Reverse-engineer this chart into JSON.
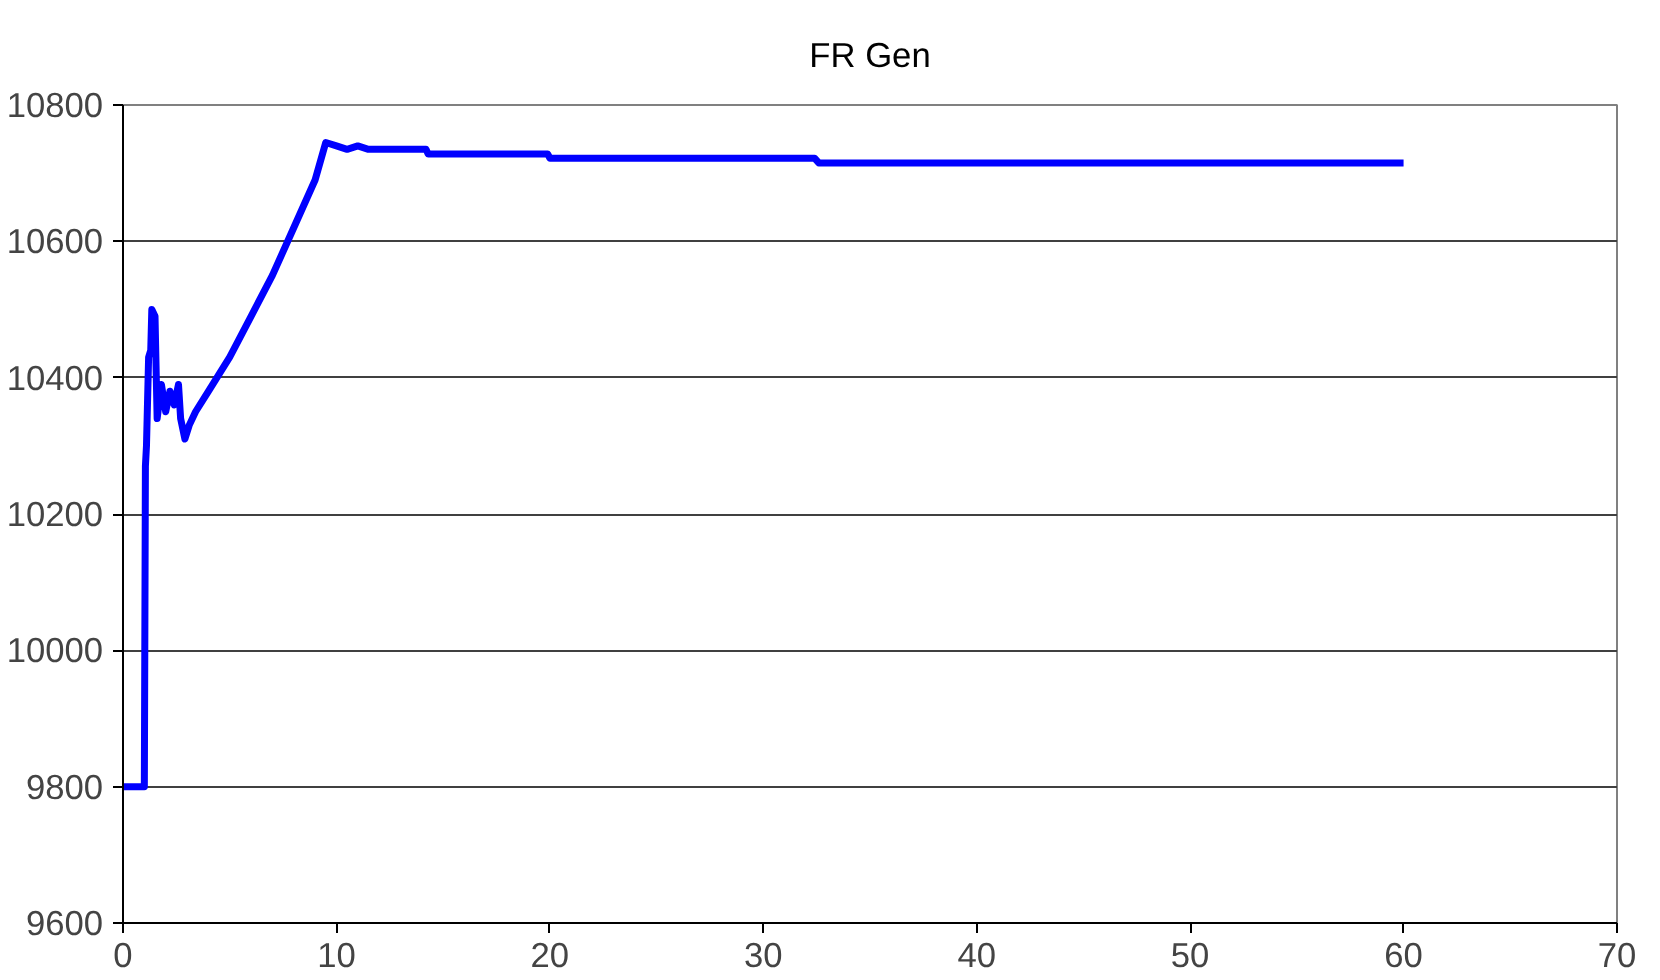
{
  "chart_data": {
    "type": "line",
    "title": "FR Gen",
    "series": [
      {
        "color": "#0000ff",
        "x": [
          0,
          1.0,
          1.05,
          1.1,
          1.2,
          1.3,
          1.35,
          1.5,
          1.6,
          1.8,
          2.0,
          2.2,
          2.4,
          2.6,
          2.7,
          2.9,
          3.1,
          3.4,
          4,
          5,
          6,
          7,
          8,
          9,
          9.5,
          10,
          10.5,
          11,
          11.5,
          14.2,
          14.3,
          19.9,
          20,
          32.4,
          32.6,
          60
        ],
        "values": [
          9800,
          9800,
          10270,
          10300,
          10430,
          10440,
          10500,
          10490,
          10340,
          10390,
          10350,
          10380,
          10360,
          10390,
          10340,
          10310,
          10330,
          10350,
          10380,
          10430,
          10490,
          10550,
          10620,
          10690,
          10745,
          10740,
          10735,
          10740,
          10735,
          10735,
          10728,
          10728,
          10722,
          10722,
          10715,
          10715
        ]
      }
    ],
    "xlim": [
      0,
      70
    ],
    "xticks": [
      0,
      10,
      20,
      30,
      40,
      50,
      60,
      70
    ],
    "ylim": [
      9600,
      10800
    ],
    "yticks": [
      9600,
      9800,
      10000,
      10200,
      10400,
      10600,
      10800
    ],
    "grid": "y",
    "marker": "none",
    "line_style": "solid"
  }
}
